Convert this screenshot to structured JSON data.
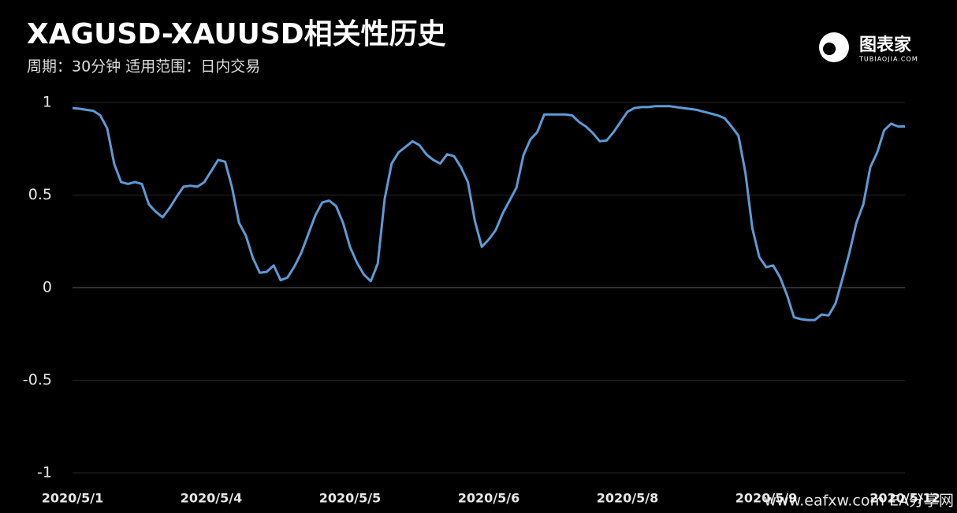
{
  "chart_data": {
    "type": "line",
    "title": "XAGUSD-XAUUSD相关性历史",
    "subtitle": "周期：30分钟  适用范围：日内交易",
    "logo": "图表家",
    "logo_sub": "TUBIAOJIA.COM",
    "watermark": "www.eafxw.com  EA分享网",
    "color": "#5b9bd5",
    "categories": [
      "2020/5/1",
      null,
      null,
      null,
      null,
      null,
      null,
      null,
      null,
      null,
      null,
      null,
      null,
      null,
      null,
      null,
      null,
      null,
      null,
      null,
      "2020/5/4",
      null,
      null,
      null,
      null,
      null,
      null,
      null,
      null,
      null,
      null,
      null,
      null,
      null,
      null,
      null,
      null,
      null,
      null,
      null,
      "2020/5/5",
      null,
      null,
      null,
      null,
      null,
      null,
      null,
      null,
      null,
      null,
      null,
      null,
      null,
      null,
      null,
      null,
      null,
      null,
      null,
      "2020/5/6",
      null,
      null,
      null,
      null,
      null,
      null,
      null,
      null,
      null,
      null,
      null,
      null,
      null,
      null,
      null,
      null,
      null,
      null,
      null,
      "2020/5/8",
      null,
      null,
      null,
      null,
      null,
      null,
      null,
      null,
      null,
      null,
      null,
      null,
      null,
      null,
      null,
      null,
      null,
      null,
      null,
      "2020/5/9",
      null,
      null,
      null,
      null,
      null,
      null,
      null,
      null,
      null,
      null,
      null,
      null,
      null,
      null,
      null,
      null,
      null,
      null,
      null,
      "2020/5/12"
    ],
    "values": [
      0.97,
      0.966,
      0.96,
      0.955,
      0.93,
      0.86,
      0.67,
      0.57,
      0.56,
      0.57,
      0.56,
      0.45,
      0.41,
      0.38,
      0.43,
      0.49,
      0.545,
      0.55,
      0.545,
      0.57,
      0.63,
      0.69,
      0.68,
      0.54,
      0.35,
      0.28,
      0.16,
      0.08,
      0.085,
      0.12,
      0.04,
      0.055,
      0.115,
      0.19,
      0.29,
      0.39,
      0.46,
      0.47,
      0.44,
      0.35,
      0.22,
      0.135,
      0.07,
      0.035,
      0.13,
      0.48,
      0.67,
      0.73,
      0.76,
      0.79,
      0.77,
      0.72,
      0.69,
      0.67,
      0.72,
      0.71,
      0.65,
      0.57,
      0.36,
      0.22,
      0.26,
      0.31,
      0.4,
      0.47,
      0.54,
      0.715,
      0.8,
      0.84,
      0.935,
      0.935,
      0.935,
      0.935,
      0.93,
      0.895,
      0.87,
      0.835,
      0.79,
      0.795,
      0.84,
      0.895,
      0.95,
      0.97,
      0.975,
      0.975,
      0.98,
      0.98,
      0.98,
      0.975,
      0.97,
      0.965,
      0.96,
      0.95,
      0.94,
      0.93,
      0.915,
      0.87,
      0.82,
      0.62,
      0.32,
      0.165,
      0.11,
      0.12,
      0.055,
      -0.04,
      -0.16,
      -0.17,
      -0.175,
      -0.175,
      -0.145,
      -0.15,
      -0.085,
      0.05,
      0.19,
      0.35,
      0.45,
      0.65,
      0.73,
      0.85,
      0.885,
      0.87,
      0.87
    ],
    "ylim": [
      -1,
      1
    ],
    "yticks": [
      1,
      0.5,
      0,
      -0.5,
      -1
    ],
    "grid": true
  }
}
